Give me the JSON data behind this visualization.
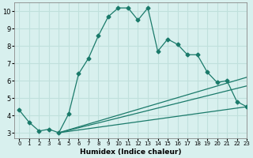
{
  "xlabel": "Humidex (Indice chaleur)",
  "xlim": [
    -0.5,
    23
  ],
  "ylim": [
    2.7,
    10.5
  ],
  "yticks": [
    3,
    4,
    5,
    6,
    7,
    8,
    9,
    10
  ],
  "xticks": [
    0,
    1,
    2,
    3,
    4,
    5,
    6,
    7,
    8,
    9,
    10,
    11,
    12,
    13,
    14,
    15,
    16,
    17,
    18,
    19,
    20,
    21,
    22,
    23
  ],
  "bg_color": "#d8f0ee",
  "line_color": "#1a7a6a",
  "grid_color": "#c0e0dc",
  "main_line": {
    "x": [
      0,
      1,
      2,
      3,
      4,
      5,
      6,
      7,
      8,
      9,
      10,
      11,
      12,
      13,
      14,
      15,
      16,
      17,
      18,
      19,
      20,
      21,
      22,
      23
    ],
    "y": [
      4.3,
      3.6,
      3.1,
      3.2,
      3.0,
      4.1,
      6.4,
      7.3,
      8.6,
      9.7,
      10.2,
      10.2,
      9.5,
      10.2,
      7.7,
      8.4,
      8.1,
      7.5,
      7.5,
      6.5,
      5.9,
      6.0,
      4.8,
      4.5
    ]
  },
  "straight_lines": [
    {
      "x": [
        4,
        23
      ],
      "y": [
        3.0,
        6.2
      ]
    },
    {
      "x": [
        4,
        23
      ],
      "y": [
        3.0,
        5.7
      ]
    },
    {
      "x": [
        4,
        23
      ],
      "y": [
        3.0,
        4.5
      ]
    }
  ]
}
